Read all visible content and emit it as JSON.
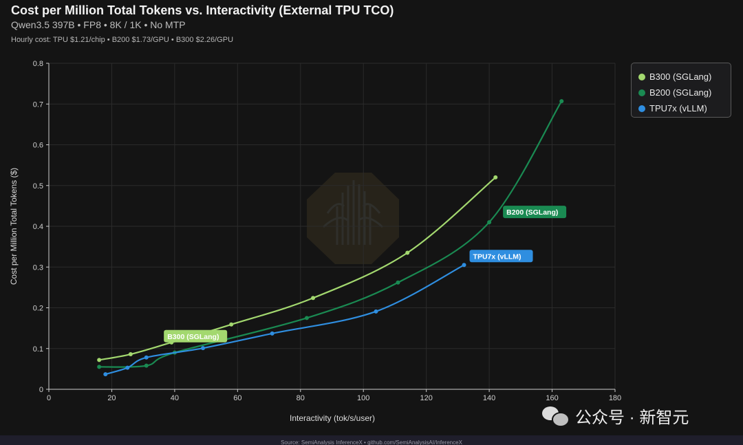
{
  "header": {
    "title": "Cost per Million Total Tokens vs. Interactivity (External TPU TCO)",
    "subtitle": "Qwen3.5 397B • FP8 • 8K / 1K • No MTP",
    "note": "Hourly cost: TPU $1.21/chip • B200 $1.73/GPU • B300 $2.26/GPU"
  },
  "footer": {
    "source": "Source: SemiAnalysis InferenceX • github.com/SemiAnalysisAI/InferenceX"
  },
  "watermark": {
    "text": "公众号 · 新智元"
  },
  "colors": {
    "background": "#141414",
    "b300": "#a3d86f",
    "b200": "#1a8a52",
    "tpu": "#2f8ee0",
    "grid": "#2b2b2b"
  },
  "chart_data": {
    "type": "line",
    "xlabel": "Interactivity (tok/s/user)",
    "ylabel": "Cost per Million Total Tokens ($)",
    "xlim": [
      0,
      180
    ],
    "ylim": [
      0,
      0.8
    ],
    "xticks": [
      0,
      20,
      40,
      60,
      80,
      100,
      120,
      140,
      160,
      180
    ],
    "yticks": [
      0,
      0.1,
      0.2,
      0.3,
      0.4,
      0.5,
      0.6,
      0.7,
      0.8
    ],
    "grid": true,
    "legend_position": "top-right",
    "series": [
      {
        "name": "B300 (SGLang)",
        "color": "#a3d86f",
        "label": "B300 (SGLang)",
        "x": [
          16,
          26,
          39,
          58,
          84,
          114,
          142
        ],
        "y": [
          0.072,
          0.086,
          0.115,
          0.159,
          0.224,
          0.335,
          0.52
        ]
      },
      {
        "name": "B200 (SGLang)",
        "color": "#1a8a52",
        "label": "B200 (SGLang)",
        "x": [
          16,
          31,
          40,
          82,
          111,
          140,
          163
        ],
        "y": [
          0.055,
          0.058,
          0.09,
          0.175,
          0.262,
          0.41,
          0.707
        ]
      },
      {
        "name": "TPU7x (vLLM)",
        "color": "#2f8ee0",
        "label": "TPU7x (vLLM)",
        "x": [
          18,
          25,
          31,
          49,
          71,
          104,
          132
        ],
        "y": [
          0.037,
          0.053,
          0.078,
          0.101,
          0.137,
          0.191,
          0.305
        ]
      }
    ]
  }
}
